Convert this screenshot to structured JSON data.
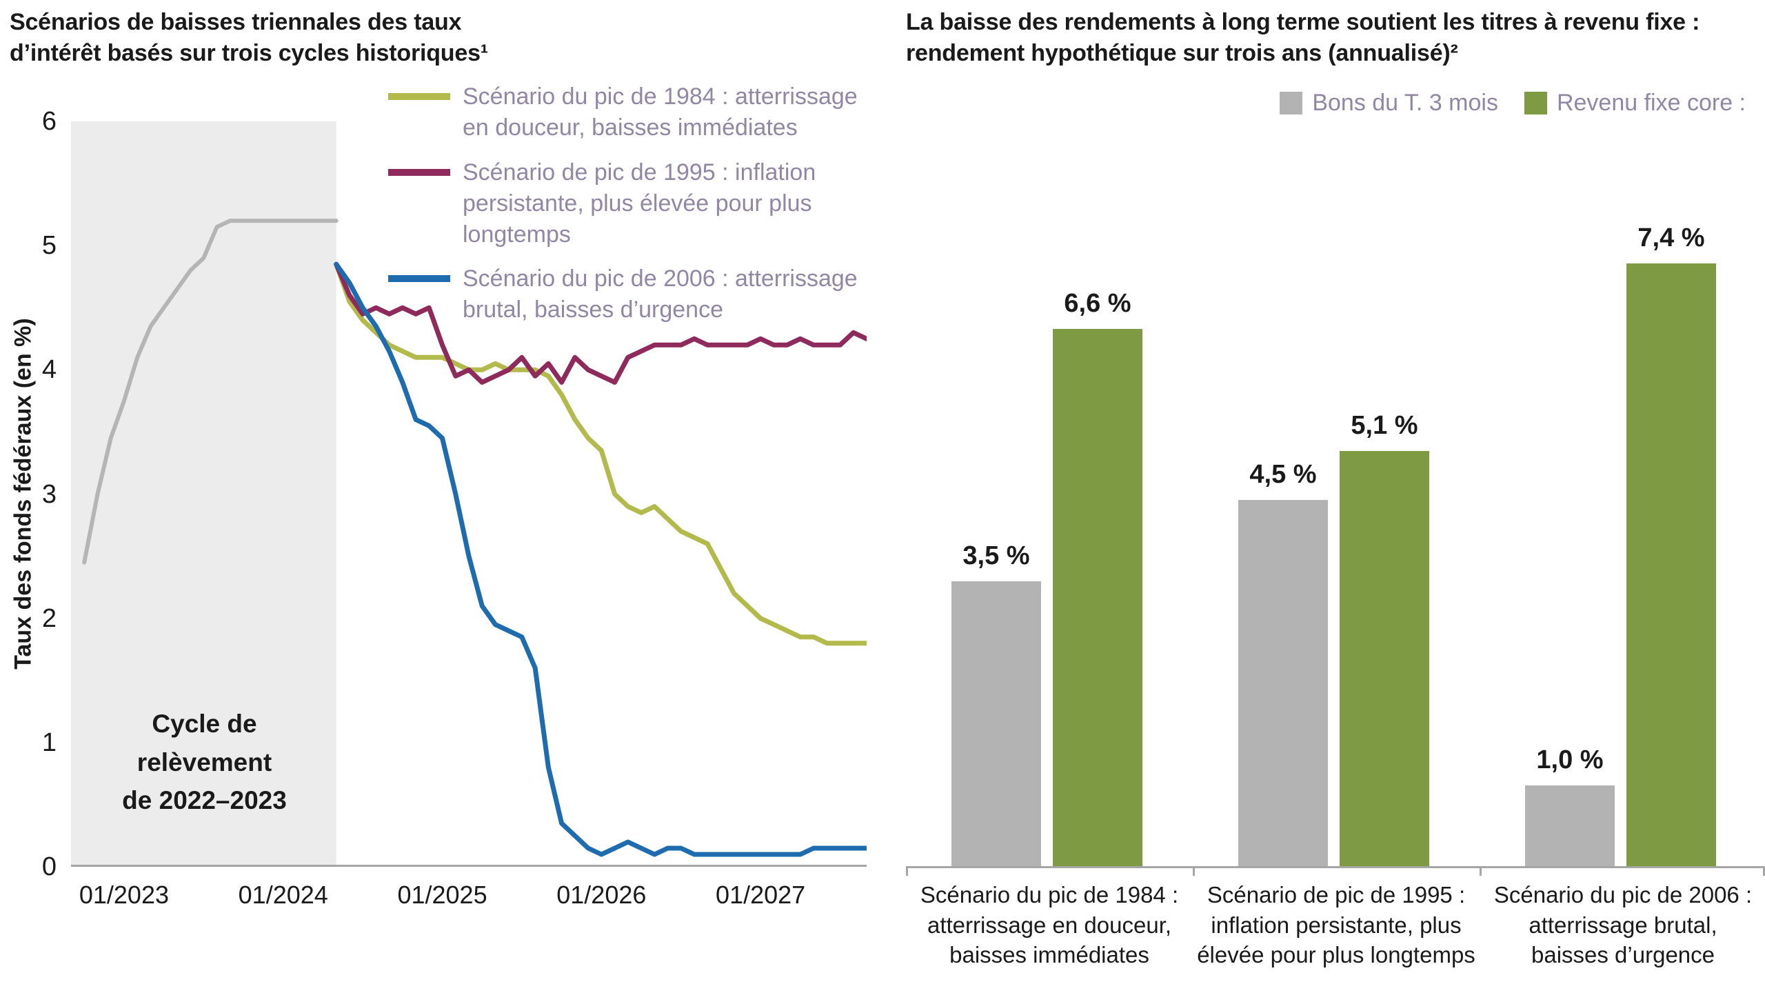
{
  "chart_data": [
    {
      "type": "line",
      "title": "Scénarios de baisses triennales des taux\nd’intérêt basés sur trois cycles historiques¹",
      "ylabel": "Taux des fonds fédéraux (en %)",
      "ylim": [
        0,
        6
      ],
      "y_ticks": [
        0,
        1,
        2,
        3,
        4,
        5,
        6
      ],
      "x_total_months": 60,
      "x_ticks": [
        {
          "label": "01/2023",
          "month": 4
        },
        {
          "label": "01/2024",
          "month": 16
        },
        {
          "label": "01/2025",
          "month": 28
        },
        {
          "label": "01/2026",
          "month": 40
        },
        {
          "label": "01/2027",
          "month": 52
        }
      ],
      "axis_color": "#a6a6a6",
      "grid": false,
      "shaded_region": {
        "label": "Cycle de\nrelèvement\nde 2022–2023",
        "color": "#ececec",
        "x_start": 0,
        "x_end": 20
      },
      "legend_position": "top-right",
      "legend": [
        {
          "label": "Scénario du pic de 1984 : atterrissage\nen douceur, baisses immédiates",
          "color": "#b2ba4c"
        },
        {
          "label": "Scénario de pic de 1995 : inflation\npersistante, plus élevée pour plus\nlongtemps",
          "color": "#8e2a5c"
        },
        {
          "label": "Scénario du pic de 2006 : atterrissage\nbrutal, baisses d’urgence",
          "color": "#1e6cae"
        }
      ],
      "series": [
        {
          "id": "historical",
          "name": "Historique (cycle de relèvement 2022–2023)",
          "color": "#b5b5b5",
          "stroke_width": 6,
          "x_start": 1,
          "values": [
            2.45,
            3.0,
            3.45,
            3.75,
            4.1,
            4.35,
            4.5,
            4.65,
            4.8,
            4.9,
            5.15,
            5.2,
            5.2,
            5.2,
            5.2,
            5.2,
            5.2,
            5.2,
            5.2,
            5.2
          ]
        },
        {
          "id": "pic-1984",
          "name": "Scénario du pic de 1984 : atterrissage en douceur, baisses immédiates",
          "color": "#b2ba4c",
          "stroke_width": 7,
          "x_start": 20,
          "values": [
            4.85,
            4.55,
            4.4,
            4.3,
            4.2,
            4.15,
            4.1,
            4.1,
            4.1,
            4.05,
            4.0,
            4.0,
            4.05,
            4.0,
            4.0,
            4.0,
            3.95,
            3.8,
            3.6,
            3.45,
            3.35,
            3.0,
            2.9,
            2.85,
            2.9,
            2.8,
            2.7,
            2.65,
            2.6,
            2.4,
            2.2,
            2.1,
            2.0,
            1.95,
            1.9,
            1.85,
            1.85,
            1.8,
            1.8,
            1.8,
            1.8
          ]
        },
        {
          "id": "pic-1995",
          "name": "Scénario de pic de 1995 : inflation persistante, plus élevée pour plus longtemps",
          "color": "#8e2a5c",
          "stroke_width": 7,
          "x_start": 20,
          "values": [
            4.85,
            4.6,
            4.45,
            4.5,
            4.45,
            4.5,
            4.45,
            4.5,
            4.2,
            3.95,
            4.0,
            3.9,
            3.95,
            4.0,
            4.1,
            3.95,
            4.05,
            3.9,
            4.1,
            4.0,
            3.95,
            3.9,
            4.1,
            4.15,
            4.2,
            4.2,
            4.2,
            4.25,
            4.2,
            4.2,
            4.2,
            4.2,
            4.25,
            4.2,
            4.2,
            4.25,
            4.2,
            4.2,
            4.2,
            4.3,
            4.25
          ]
        },
        {
          "id": "pic-2006",
          "name": "Scénario du pic de 2006 : atterrissage brutal, baisses d’urgence",
          "color": "#1e6cae",
          "stroke_width": 7,
          "x_start": 20,
          "values": [
            4.85,
            4.7,
            4.5,
            4.35,
            4.15,
            3.9,
            3.6,
            3.55,
            3.45,
            3.0,
            2.5,
            2.1,
            1.95,
            1.9,
            1.85,
            1.6,
            0.8,
            0.35,
            0.25,
            0.15,
            0.1,
            0.15,
            0.2,
            0.15,
            0.1,
            0.15,
            0.15,
            0.1,
            0.1,
            0.1,
            0.1,
            0.1,
            0.1,
            0.1,
            0.1,
            0.1,
            0.15,
            0.15,
            0.15,
            0.15,
            0.15
          ]
        }
      ]
    },
    {
      "type": "bar",
      "title": "La baisse des rendements à long terme soutient les titres à revenu fixe :\nrendement hypothétique sur trois ans (annualisé)²",
      "ylim": [
        0,
        8
      ],
      "grid": false,
      "legend_position": "top-right",
      "legend": [
        {
          "label": "Bons du T. 3 mois",
          "color": "#b3b3b3"
        },
        {
          "label": "Revenu fixe core :",
          "color": "#7e9a43"
        }
      ],
      "categories": [
        "Scénario du pic de 1984 :\natterrissage en douceur,\nbaisses immédiates",
        "Scénario de pic de 1995 :\ninflation persistante, plus\nélevée pour plus longtemps",
        "Scénario du pic de 2006 :\natterrissage brutal,\nbaisses d’urgence"
      ],
      "series": [
        {
          "id": "tbills",
          "name": "Bons du T. 3 mois",
          "color": "#b3b3b3",
          "values": [
            3.5,
            4.5,
            1.0
          ],
          "labels": [
            "3,5 %",
            "4,5 %",
            "1,0 %"
          ]
        },
        {
          "id": "core",
          "name": "Revenu fixe core",
          "color": "#7e9a43",
          "values": [
            6.6,
            5.1,
            7.4
          ],
          "labels": [
            "6,6 %",
            "5,1 %",
            "7,4 %"
          ]
        }
      ]
    }
  ]
}
